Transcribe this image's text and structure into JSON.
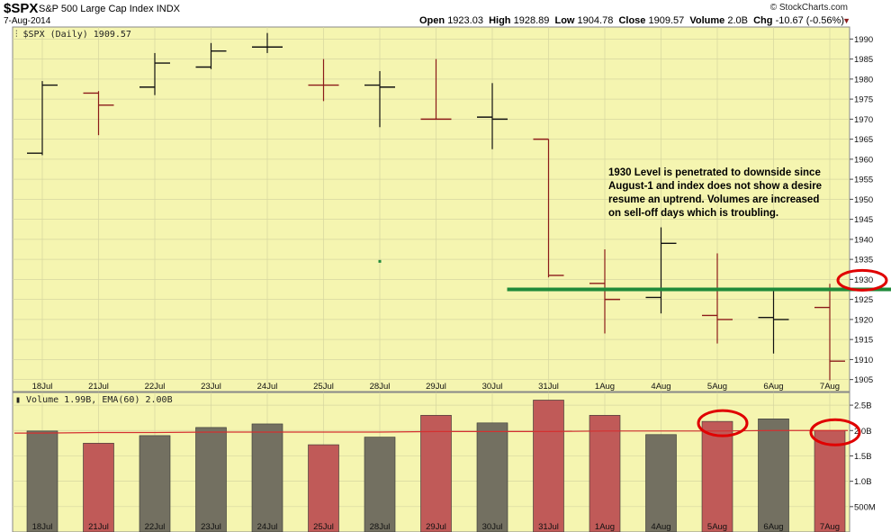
{
  "header": {
    "symbol": "$SPX",
    "name": "S&P 500 Large Cap Index",
    "exchange": "INDX",
    "date": "7-Aug-2014",
    "brand": "© StockCharts.com",
    "open_label": "Open",
    "open": "1923.03",
    "high_label": "High",
    "high": "1928.89",
    "low_label": "Low",
    "low": "1904.78",
    "close_label": "Close",
    "close": "1909.57",
    "volume_label": "Volume",
    "volume": "2.0B",
    "chg_label": "Chg",
    "chg": "-10.67 (-0.56%)"
  },
  "colors": {
    "panel_bg": "#f5f5b0",
    "up": "#111111",
    "down": "#8b1a1a",
    "vol_up": "#737061",
    "vol_down": "#c05a58",
    "ema": "#d43030",
    "support": "#1f8a3a",
    "circle": "#e00000"
  },
  "chart_data": [
    {
      "type": "ohlc",
      "legend": "$SPX (Daily) 1909.57",
      "categories": [
        "18Jul",
        "21Jul",
        "22Jul",
        "23Jul",
        "24Jul",
        "25Jul",
        "28Jul",
        "29Jul",
        "30Jul",
        "31Jul",
        "1Aug",
        "4Aug",
        "5Aug",
        "6Aug",
        "7Aug"
      ],
      "open": [
        1961.5,
        1976.5,
        1978.0,
        1983.0,
        1988.0,
        1978.5,
        1978.5,
        1970.0,
        1970.5,
        1965.0,
        1929.0,
        1925.5,
        1921.0,
        1920.5,
        1923.0
      ],
      "high": [
        1979.5,
        1977.0,
        1986.5,
        1989.0,
        1991.5,
        1985.0,
        1982.0,
        1985.0,
        1979.0,
        1965.0,
        1937.5,
        1943.0,
        1936.5,
        1927.5,
        1928.9
      ],
      "low": [
        1961.0,
        1966.0,
        1976.0,
        1982.5,
        1986.5,
        1974.5,
        1968.0,
        1970.0,
        1962.5,
        1930.5,
        1916.5,
        1921.5,
        1914.0,
        1911.5,
        1904.8
      ],
      "close": [
        1978.5,
        1973.5,
        1984.0,
        1987.0,
        1988.0,
        1978.5,
        1978.0,
        1970.0,
        1970.0,
        1931.0,
        1925.0,
        1939.0,
        1920.0,
        1920.0,
        1909.6
      ],
      "direction": [
        "up",
        "down",
        "up",
        "up",
        "up",
        "down",
        "up",
        "down",
        "up",
        "down",
        "down",
        "up",
        "down",
        "up",
        "down"
      ],
      "y_ticks": [
        "1990",
        "1985",
        "1980",
        "1975",
        "1970",
        "1965",
        "1960",
        "1955",
        "1950",
        "1945",
        "1940",
        "1935",
        "1930",
        "1925",
        "1920",
        "1915",
        "1910",
        "1905"
      ],
      "ylim": [
        1902,
        1993
      ],
      "support_level": 1927.5,
      "support_from": "31Jul",
      "circled_level": 1930,
      "annotation_lines": [
        "1930 Level is penetrated to downside since",
        "August-1 and index does not show a desire",
        "resume an uptrend.   Volumes are increased",
        "on sell-off days which is troubling."
      ],
      "stray_point": {
        "category": "28Jul",
        "value": 1934.5
      }
    },
    {
      "type": "bar",
      "legend": "Volume 1.99B, EMA(60) 2.00B",
      "categories": [
        "18Jul",
        "21Jul",
        "22Jul",
        "23Jul",
        "24Jul",
        "25Jul",
        "28Jul",
        "29Jul",
        "30Jul",
        "31Jul",
        "1Aug",
        "4Aug",
        "5Aug",
        "6Aug",
        "7Aug"
      ],
      "values": [
        1.99,
        1.75,
        1.9,
        2.06,
        2.13,
        1.72,
        1.87,
        2.3,
        2.15,
        2.6,
        2.3,
        1.92,
        2.18,
        2.23,
        2.0
      ],
      "direction": [
        "up",
        "down",
        "up",
        "up",
        "up",
        "down",
        "up",
        "down",
        "up",
        "down",
        "down",
        "up",
        "down",
        "up",
        "down"
      ],
      "ema": [
        1.95,
        1.96,
        1.96,
        1.97,
        1.97,
        1.97,
        1.97,
        1.98,
        1.98,
        1.98,
        1.99,
        1.99,
        1.99,
        2.0,
        2.0
      ],
      "y_ticks": [
        {
          "v": 2.5,
          "label": "2.5B"
        },
        {
          "v": 2.0,
          "label": "2.0B"
        },
        {
          "v": 1.5,
          "label": "1.5B"
        },
        {
          "v": 1.0,
          "label": "1.0B"
        },
        {
          "v": 0.5,
          "label": "500M"
        }
      ],
      "ylim": [
        0,
        2.75
      ],
      "circled": [
        "5Aug",
        "7Aug"
      ]
    }
  ]
}
